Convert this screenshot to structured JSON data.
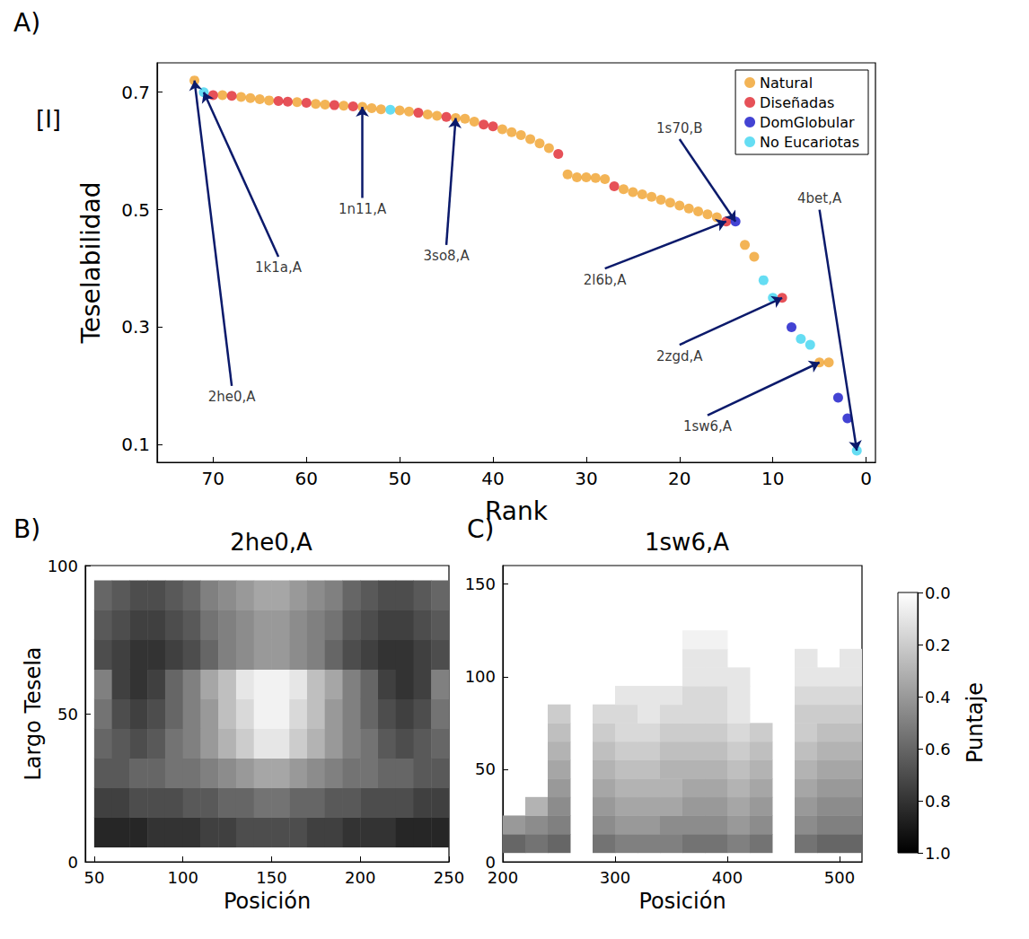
{
  "chart_data": [
    {
      "panel": "A)",
      "type": "scatter",
      "x_label": "Rank",
      "y_label": "Teselabilidad",
      "y_label_symbol": "[I]",
      "xlim": [
        76,
        -1
      ],
      "xticks": [
        0,
        10,
        20,
        30,
        40,
        50,
        60,
        70
      ],
      "ylim": [
        0.07,
        0.75
      ],
      "yticks": [
        0.1,
        0.3,
        0.5,
        0.7
      ],
      "legend": "top-right",
      "series": [
        {
          "name": "Natural",
          "color": "#f0a12c",
          "x": [
            72,
            69,
            67,
            66,
            65,
            64,
            61,
            59,
            58,
            56,
            54,
            53,
            52,
            50,
            49,
            47,
            46,
            44,
            43,
            42,
            39,
            38,
            37,
            36,
            35,
            34,
            32,
            31,
            30,
            29,
            28,
            26,
            25,
            24,
            23,
            22,
            21,
            20,
            19,
            18,
            17,
            16,
            13,
            12,
            5,
            4
          ],
          "values": [
            0.72,
            0.695,
            0.692,
            0.69,
            0.688,
            0.686,
            0.683,
            0.68,
            0.679,
            0.677,
            0.675,
            0.673,
            0.671,
            0.669,
            0.667,
            0.662,
            0.66,
            0.656,
            0.655,
            0.65,
            0.637,
            0.632,
            0.627,
            0.62,
            0.613,
            0.605,
            0.56,
            0.555,
            0.555,
            0.554,
            0.552,
            0.535,
            0.53,
            0.526,
            0.522,
            0.517,
            0.512,
            0.507,
            0.502,
            0.497,
            0.492,
            0.487,
            0.44,
            0.42,
            0.24,
            0.24
          ]
        },
        {
          "name": "Diseñadas",
          "color": "#e0262e",
          "x": [
            70,
            68,
            63,
            62,
            60,
            57,
            55,
            48,
            45,
            41,
            40,
            33,
            27,
            15,
            9
          ],
          "values": [
            0.695,
            0.694,
            0.685,
            0.684,
            0.682,
            0.678,
            0.676,
            0.665,
            0.658,
            0.645,
            0.642,
            0.595,
            0.54,
            0.48,
            0.35
          ]
        },
        {
          "name": "DomGlobular",
          "color": "#1414c8",
          "x": [
            14,
            8,
            3,
            2
          ],
          "values": [
            0.48,
            0.3,
            0.18,
            0.145
          ]
        },
        {
          "name": "No Eucariotas",
          "color": "#3fd4f0",
          "x": [
            71,
            51,
            11,
            10,
            7,
            6,
            1
          ],
          "values": [
            0.7,
            0.67,
            0.38,
            0.35,
            0.28,
            0.27,
            0.09
          ]
        }
      ],
      "annotations": [
        {
          "text": "2he0,A",
          "x": 72,
          "y": 0.72
        },
        {
          "text": "1k1a,A",
          "x": 71,
          "y": 0.7
        },
        {
          "text": "1n11,A",
          "x": 54,
          "y": 0.675
        },
        {
          "text": "3so8,A",
          "x": 44,
          "y": 0.656
        },
        {
          "text": "2l6b,A",
          "x": 15,
          "y": 0.48
        },
        {
          "text": "1s70,B",
          "x": 14,
          "y": 0.48
        },
        {
          "text": "2zgd,A",
          "x": 9,
          "y": 0.35
        },
        {
          "text": "1sw6,A",
          "x": 5,
          "y": 0.24
        },
        {
          "text": "4bet,A",
          "x": 1,
          "y": 0.09
        }
      ]
    },
    {
      "panel": "B)",
      "type": "heatmap",
      "title": "2he0,A",
      "x_label": "Posición",
      "y_label": "Largo Tesela",
      "xlim": [
        45,
        250
      ],
      "xticks": [
        50,
        100,
        150,
        200,
        250
      ],
      "ylim": [
        0,
        100
      ],
      "yticks": [
        0,
        50,
        100
      ],
      "x": [
        55,
        65,
        75,
        85,
        95,
        105,
        115,
        125,
        135,
        145,
        155,
        165,
        175,
        185,
        195,
        205,
        215,
        225,
        235,
        245
      ],
      "y": [
        10,
        20,
        30,
        40,
        50,
        60,
        70,
        80,
        90
      ],
      "cells": [
        [
          0.85,
          0.85,
          0.85,
          0.8,
          0.8,
          0.8,
          0.75,
          0.75,
          0.7,
          0.7,
          0.7,
          0.7,
          0.75,
          0.75,
          0.8,
          0.8,
          0.8,
          0.85,
          0.85,
          0.85
        ],
        [
          0.75,
          0.75,
          0.7,
          0.7,
          0.7,
          0.65,
          0.65,
          0.6,
          0.6,
          0.55,
          0.55,
          0.6,
          0.6,
          0.65,
          0.65,
          0.7,
          0.7,
          0.7,
          0.75,
          0.75
        ],
        [
          0.65,
          0.65,
          0.6,
          0.6,
          0.55,
          0.55,
          0.5,
          0.45,
          0.4,
          0.35,
          0.35,
          0.4,
          0.45,
          0.5,
          0.55,
          0.55,
          0.6,
          0.6,
          0.65,
          0.65
        ],
        [
          0.6,
          0.65,
          0.7,
          0.65,
          0.55,
          0.5,
          0.4,
          0.3,
          0.2,
          0.1,
          0.1,
          0.2,
          0.3,
          0.4,
          0.5,
          0.55,
          0.65,
          0.7,
          0.65,
          0.6
        ],
        [
          0.55,
          0.7,
          0.75,
          0.7,
          0.6,
          0.5,
          0.4,
          0.25,
          0.15,
          0.05,
          0.05,
          0.15,
          0.25,
          0.4,
          0.5,
          0.6,
          0.7,
          0.75,
          0.7,
          0.55
        ],
        [
          0.5,
          0.75,
          0.8,
          0.75,
          0.6,
          0.5,
          0.35,
          0.25,
          0.1,
          0.05,
          0.05,
          0.1,
          0.25,
          0.35,
          0.5,
          0.6,
          0.75,
          0.8,
          0.75,
          0.5
        ],
        [
          0.7,
          0.75,
          0.8,
          0.8,
          0.75,
          0.7,
          0.6,
          0.5,
          0.45,
          0.4,
          0.4,
          0.45,
          0.5,
          0.6,
          0.7,
          0.75,
          0.8,
          0.8,
          0.75,
          0.7
        ],
        [
          0.65,
          0.7,
          0.75,
          0.75,
          0.7,
          0.65,
          0.55,
          0.5,
          0.45,
          0.4,
          0.4,
          0.45,
          0.5,
          0.55,
          0.65,
          0.7,
          0.75,
          0.75,
          0.7,
          0.65
        ],
        [
          0.6,
          0.65,
          0.7,
          0.7,
          0.65,
          0.6,
          0.5,
          0.45,
          0.4,
          0.35,
          0.35,
          0.4,
          0.45,
          0.5,
          0.6,
          0.65,
          0.7,
          0.7,
          0.65,
          0.6
        ]
      ]
    },
    {
      "panel": "C)",
      "type": "heatmap",
      "title": "1sw6,A",
      "x_label": "Posición",
      "xlim": [
        200,
        520
      ],
      "xticks": [
        200,
        300,
        400,
        500
      ],
      "ylim": [
        0,
        160
      ],
      "yticks": [
        0,
        50,
        100,
        150
      ],
      "x": [
        210,
        230,
        250,
        270,
        290,
        310,
        330,
        350,
        370,
        390,
        410,
        430,
        450,
        470,
        490,
        510
      ],
      "y": [
        10,
        20,
        30,
        40,
        50,
        60,
        70,
        80,
        90,
        100,
        110,
        120
      ],
      "cells": [
        [
          0.6,
          0.55,
          0.6,
          null,
          0.55,
          0.5,
          0.5,
          0.5,
          0.55,
          0.55,
          0.5,
          0.55,
          null,
          0.55,
          0.6,
          0.6
        ],
        [
          0.4,
          0.45,
          0.5,
          null,
          0.45,
          0.4,
          0.4,
          0.45,
          0.45,
          0.45,
          0.4,
          0.45,
          null,
          0.45,
          0.5,
          0.5
        ],
        [
          null,
          0.3,
          0.45,
          null,
          0.4,
          0.35,
          0.35,
          0.35,
          0.4,
          0.4,
          0.35,
          0.4,
          null,
          0.4,
          0.45,
          0.45
        ],
        [
          null,
          null,
          0.4,
          null,
          0.35,
          0.3,
          0.3,
          0.3,
          0.35,
          0.35,
          0.3,
          0.35,
          null,
          0.35,
          0.4,
          0.4
        ],
        [
          null,
          null,
          0.35,
          null,
          0.3,
          0.25,
          0.25,
          0.3,
          0.3,
          0.3,
          0.25,
          0.3,
          null,
          0.3,
          0.35,
          0.35
        ],
        [
          null,
          null,
          0.3,
          null,
          0.25,
          0.2,
          0.2,
          0.25,
          0.25,
          0.25,
          0.2,
          0.25,
          null,
          0.25,
          0.3,
          0.3
        ],
        [
          null,
          null,
          0.25,
          null,
          0.2,
          0.15,
          0.15,
          0.2,
          0.2,
          0.2,
          0.15,
          0.2,
          null,
          0.2,
          0.25,
          0.25
        ],
        [
          null,
          null,
          0.2,
          null,
          0.15,
          0.15,
          0.1,
          0.15,
          0.15,
          0.15,
          0.1,
          null,
          null,
          0.2,
          0.2,
          0.2
        ],
        [
          null,
          null,
          null,
          null,
          null,
          0.1,
          0.1,
          0.1,
          0.15,
          0.15,
          0.1,
          null,
          null,
          0.15,
          0.15,
          0.15
        ],
        [
          null,
          null,
          null,
          null,
          null,
          null,
          null,
          null,
          0.1,
          0.1,
          0.1,
          null,
          null,
          0.1,
          0.1,
          0.1
        ],
        [
          null,
          null,
          null,
          null,
          null,
          null,
          null,
          null,
          0.1,
          0.1,
          null,
          null,
          null,
          0.1,
          null,
          0.1
        ],
        [
          null,
          null,
          null,
          null,
          null,
          null,
          null,
          null,
          0.05,
          0.05,
          null,
          null,
          null,
          null,
          null,
          null
        ]
      ],
      "colorbar": {
        "label": "Puntaje",
        "range": [
          0,
          1
        ],
        "ticks": [
          {
            "value": 0,
            "label": "0.0"
          },
          0.2,
          0.4,
          0.6,
          0.8,
          {
            "value": 1,
            "label": "1.0"
          }
        ]
      }
    }
  ]
}
